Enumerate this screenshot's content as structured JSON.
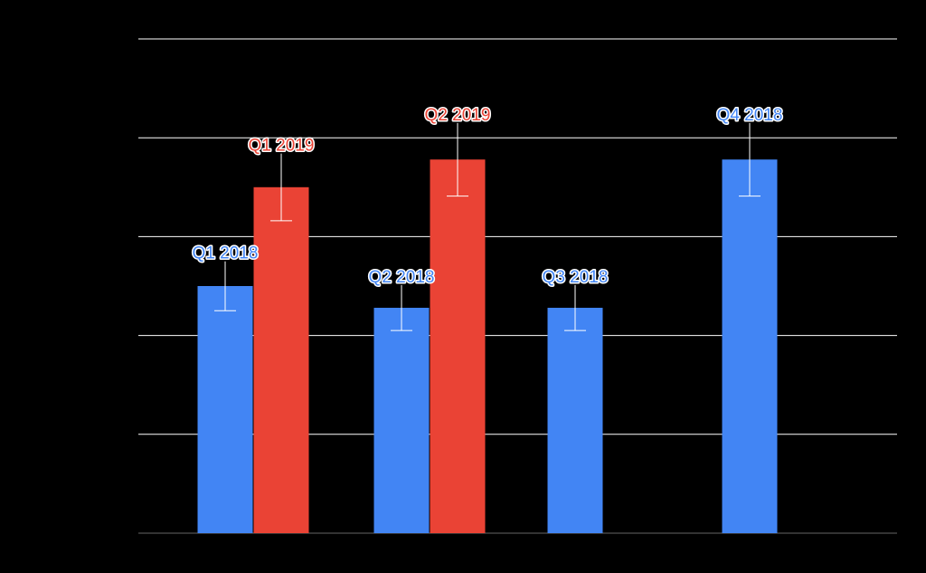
{
  "chart_data": {
    "type": "bar",
    "categories": [
      "Q1",
      "Q2",
      "Q3",
      "Q4"
    ],
    "series": [
      {
        "key": "s2018",
        "color": "#4285f4",
        "values": [
          2.5,
          2.28,
          2.28,
          3.78
        ],
        "errors": [
          0.25,
          0.23,
          0.23,
          0.37
        ],
        "labels": [
          "Q1 2018",
          "Q2 2018",
          "Q3 2018",
          "Q4 2018"
        ]
      },
      {
        "key": "s2019",
        "color": "#ea4335",
        "values": [
          3.5,
          3.78,
          null,
          null
        ],
        "errors": [
          0.34,
          0.37,
          null,
          null
        ],
        "labels": [
          "Q1 2019",
          "Q2 2019",
          "",
          ""
        ]
      }
    ],
    "ylim": [
      0,
      5
    ],
    "yticks": [
      0,
      1,
      2,
      3,
      4,
      5
    ],
    "grid": true,
    "gridline_color": "#ffffff",
    "error_bar_color": "#ffffff",
    "background": "#000000",
    "title": "",
    "xlabel": "",
    "ylabel": ""
  }
}
